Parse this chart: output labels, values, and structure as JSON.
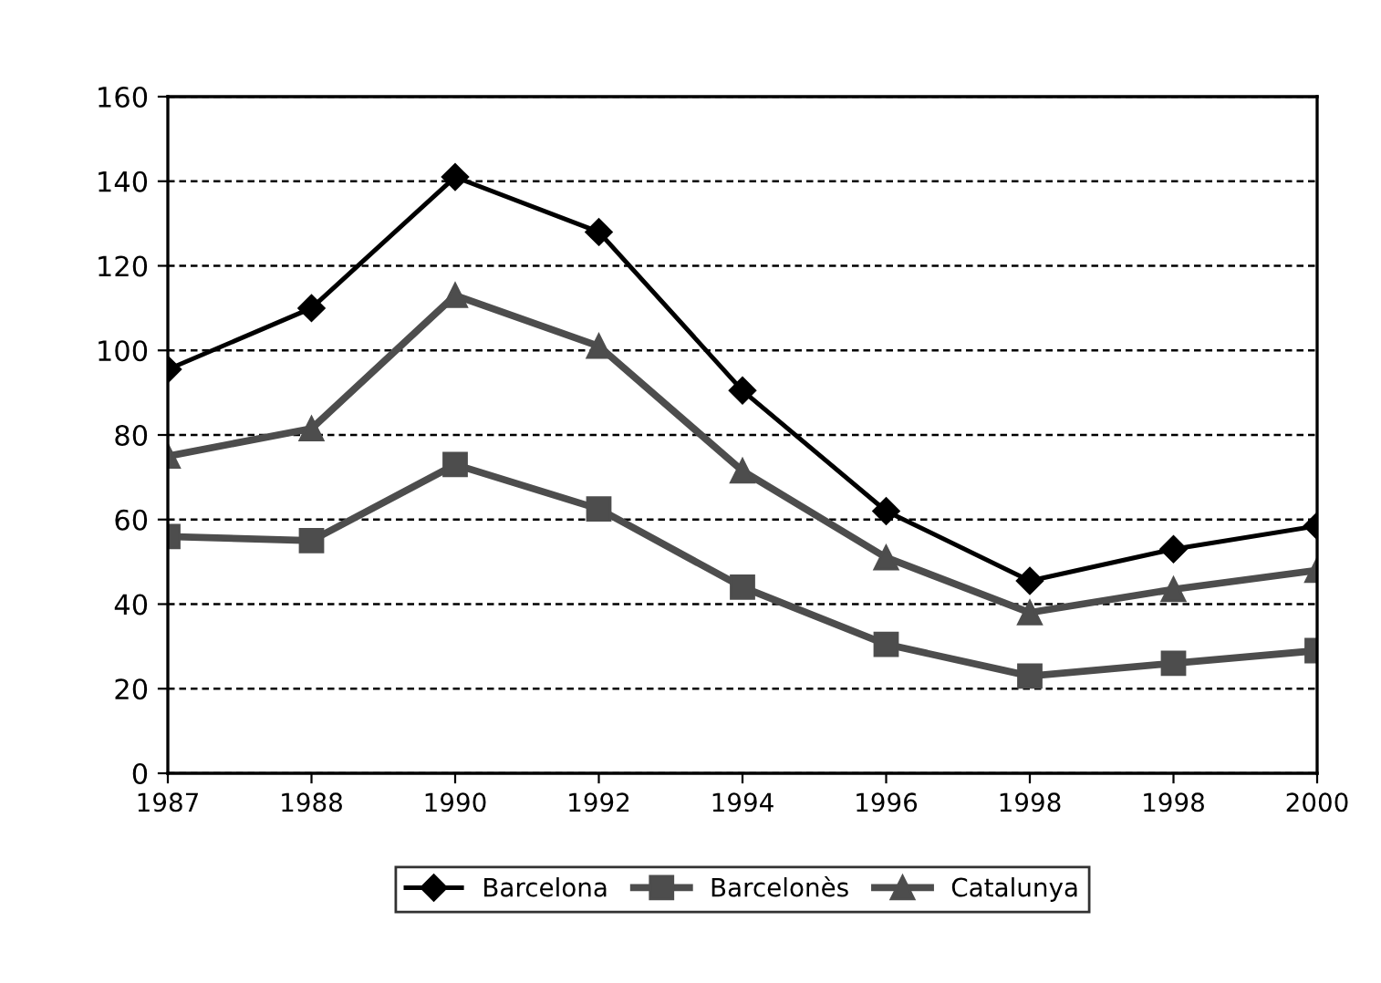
{
  "chart_data": {
    "type": "line",
    "categories": [
      "1987",
      "1988",
      "1990",
      "1992",
      "1994",
      "1996",
      "1998",
      "1998",
      "2000"
    ],
    "series": [
      {
        "name": "Barcelona",
        "color": "#000000",
        "marker": "diamond",
        "values": [
          95.5,
          110,
          141,
          128,
          90.5,
          62,
          45.5,
          53,
          58.5
        ]
      },
      {
        "name": "Barcelonès",
        "color": "#4d4d4d",
        "marker": "square",
        "values": [
          56,
          55,
          73,
          62.5,
          44,
          30.5,
          23,
          26,
          29
        ]
      },
      {
        "name": "Catalunya",
        "color": "#4d4d4d",
        "marker": "triangle",
        "values": [
          75,
          81.5,
          113,
          101,
          71.5,
          51,
          38,
          43.5,
          48
        ]
      }
    ],
    "ylim": [
      0,
      160
    ],
    "yticks": [
      0,
      20,
      40,
      60,
      80,
      100,
      120,
      140,
      160
    ],
    "grid": "y",
    "legend": "bottom",
    "line_style": "solid"
  }
}
